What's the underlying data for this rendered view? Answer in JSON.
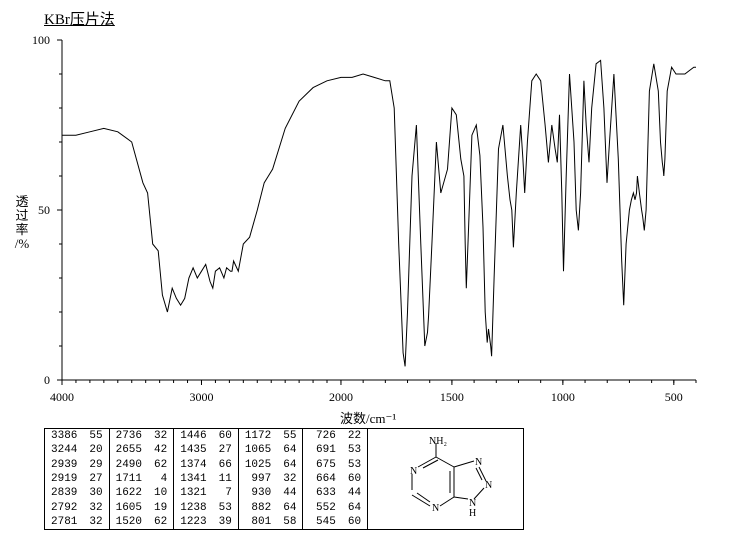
{
  "title": "KBr压片法",
  "ylabel_lines": [
    "透",
    "过",
    "率",
    "/%"
  ],
  "xlabel": "波数/cm⁻¹",
  "chart": {
    "type": "line",
    "xlim": [
      4000,
      400
    ],
    "ylim": [
      0,
      100
    ],
    "yticks": [
      0,
      50,
      100
    ],
    "xticks": [
      4000,
      3000,
      2000,
      1500,
      1000,
      500
    ],
    "line_color": "#000000",
    "line_width": 1,
    "background_color": "#ffffff",
    "axis_color": "#000000",
    "x_minor_step": 100,
    "y_minor_step": 10,
    "points": [
      [
        4000,
        72
      ],
      [
        3900,
        72
      ],
      [
        3800,
        73
      ],
      [
        3700,
        74
      ],
      [
        3600,
        73
      ],
      [
        3500,
        70
      ],
      [
        3420,
        58
      ],
      [
        3386,
        55
      ],
      [
        3350,
        40
      ],
      [
        3310,
        38
      ],
      [
        3280,
        25
      ],
      [
        3244,
        20
      ],
      [
        3210,
        27
      ],
      [
        3180,
        24
      ],
      [
        3150,
        22
      ],
      [
        3120,
        24
      ],
      [
        3090,
        30
      ],
      [
        3060,
        33
      ],
      [
        3030,
        30
      ],
      [
        3000,
        32
      ],
      [
        2970,
        34
      ],
      [
        2939,
        29
      ],
      [
        2919,
        27
      ],
      [
        2900,
        32
      ],
      [
        2870,
        33
      ],
      [
        2839,
        30
      ],
      [
        2820,
        33
      ],
      [
        2792,
        32
      ],
      [
        2781,
        32
      ],
      [
        2770,
        35
      ],
      [
        2736,
        32
      ],
      [
        2700,
        40
      ],
      [
        2655,
        42
      ],
      [
        2600,
        50
      ],
      [
        2550,
        58
      ],
      [
        2520,
        60
      ],
      [
        2490,
        62
      ],
      [
        2400,
        74
      ],
      [
        2300,
        82
      ],
      [
        2200,
        86
      ],
      [
        2100,
        88
      ],
      [
        2000,
        89
      ],
      [
        1950,
        89
      ],
      [
        1900,
        90
      ],
      [
        1850,
        89
      ],
      [
        1800,
        88
      ],
      [
        1780,
        88
      ],
      [
        1760,
        80
      ],
      [
        1740,
        40
      ],
      [
        1720,
        8
      ],
      [
        1711,
        4
      ],
      [
        1700,
        20
      ],
      [
        1680,
        60
      ],
      [
        1660,
        75
      ],
      [
        1640,
        40
      ],
      [
        1622,
        10
      ],
      [
        1610,
        14
      ],
      [
        1605,
        19
      ],
      [
        1590,
        40
      ],
      [
        1570,
        70
      ],
      [
        1550,
        55
      ],
      [
        1520,
        62
      ],
      [
        1500,
        80
      ],
      [
        1480,
        78
      ],
      [
        1460,
        65
      ],
      [
        1446,
        60
      ],
      [
        1440,
        40
      ],
      [
        1435,
        27
      ],
      [
        1425,
        45
      ],
      [
        1410,
        72
      ],
      [
        1390,
        75
      ],
      [
        1374,
        66
      ],
      [
        1360,
        45
      ],
      [
        1350,
        20
      ],
      [
        1341,
        11
      ],
      [
        1335,
        15
      ],
      [
        1325,
        10
      ],
      [
        1321,
        7
      ],
      [
        1310,
        30
      ],
      [
        1290,
        68
      ],
      [
        1270,
        75
      ],
      [
        1250,
        60
      ],
      [
        1238,
        53
      ],
      [
        1230,
        50
      ],
      [
        1223,
        39
      ],
      [
        1210,
        55
      ],
      [
        1190,
        75
      ],
      [
        1180,
        65
      ],
      [
        1172,
        55
      ],
      [
        1160,
        70
      ],
      [
        1140,
        88
      ],
      [
        1120,
        90
      ],
      [
        1100,
        88
      ],
      [
        1080,
        75
      ],
      [
        1065,
        64
      ],
      [
        1050,
        75
      ],
      [
        1035,
        68
      ],
      [
        1025,
        64
      ],
      [
        1015,
        78
      ],
      [
        1005,
        55
      ],
      [
        997,
        32
      ],
      [
        985,
        60
      ],
      [
        970,
        90
      ],
      [
        950,
        70
      ],
      [
        940,
        50
      ],
      [
        930,
        44
      ],
      [
        920,
        55
      ],
      [
        905,
        88
      ],
      [
        895,
        75
      ],
      [
        882,
        64
      ],
      [
        870,
        80
      ],
      [
        850,
        93
      ],
      [
        830,
        94
      ],
      [
        815,
        80
      ],
      [
        801,
        58
      ],
      [
        790,
        70
      ],
      [
        770,
        90
      ],
      [
        750,
        65
      ],
      [
        735,
        35
      ],
      [
        726,
        22
      ],
      [
        715,
        40
      ],
      [
        700,
        50
      ],
      [
        691,
        53
      ],
      [
        682,
        55
      ],
      [
        675,
        53
      ],
      [
        668,
        55
      ],
      [
        664,
        60
      ],
      [
        655,
        55
      ],
      [
        645,
        50
      ],
      [
        640,
        48
      ],
      [
        633,
        44
      ],
      [
        625,
        50
      ],
      [
        610,
        85
      ],
      [
        590,
        93
      ],
      [
        570,
        85
      ],
      [
        560,
        70
      ],
      [
        552,
        64
      ],
      [
        548,
        62
      ],
      [
        545,
        60
      ],
      [
        540,
        65
      ],
      [
        530,
        85
      ],
      [
        510,
        92
      ],
      [
        490,
        90
      ],
      [
        470,
        90
      ],
      [
        450,
        90
      ],
      [
        430,
        91
      ],
      [
        410,
        92
      ],
      [
        400,
        92
      ]
    ]
  },
  "peak_columns": [
    [
      [
        "3386",
        "55"
      ],
      [
        "3244",
        "20"
      ],
      [
        "2939",
        "29"
      ],
      [
        "2919",
        "27"
      ],
      [
        "2839",
        "30"
      ],
      [
        "2792",
        "32"
      ],
      [
        "2781",
        "32"
      ]
    ],
    [
      [
        "2736",
        "32"
      ],
      [
        "2655",
        "42"
      ],
      [
        "2490",
        "62"
      ],
      [
        "1711",
        " 4"
      ],
      [
        "1622",
        "10"
      ],
      [
        "1605",
        "19"
      ],
      [
        "1520",
        "62"
      ]
    ],
    [
      [
        "1446",
        "60"
      ],
      [
        "1435",
        "27"
      ],
      [
        "1374",
        "66"
      ],
      [
        "1341",
        "11"
      ],
      [
        "1321",
        " 7"
      ],
      [
        "1238",
        "53"
      ],
      [
        "1223",
        "39"
      ]
    ],
    [
      [
        "1172",
        "55"
      ],
      [
        "1065",
        "64"
      ],
      [
        "1025",
        "64"
      ],
      [
        " 997",
        "32"
      ],
      [
        " 930",
        "44"
      ],
      [
        " 882",
        "64"
      ],
      [
        " 801",
        "58"
      ]
    ],
    [
      [
        " 726",
        "22"
      ],
      [
        " 691",
        "53"
      ],
      [
        " 675",
        "53"
      ],
      [
        " 664",
        "60"
      ],
      [
        " 633",
        "44"
      ],
      [
        " 552",
        "64"
      ],
      [
        " 545",
        "60"
      ]
    ]
  ],
  "molecule": {
    "label_top": "NH₂",
    "label_N1": "N",
    "label_N2": "N",
    "label_N3": "N",
    "label_N4": "N",
    "label_NH": "N",
    "label_H": "H"
  }
}
